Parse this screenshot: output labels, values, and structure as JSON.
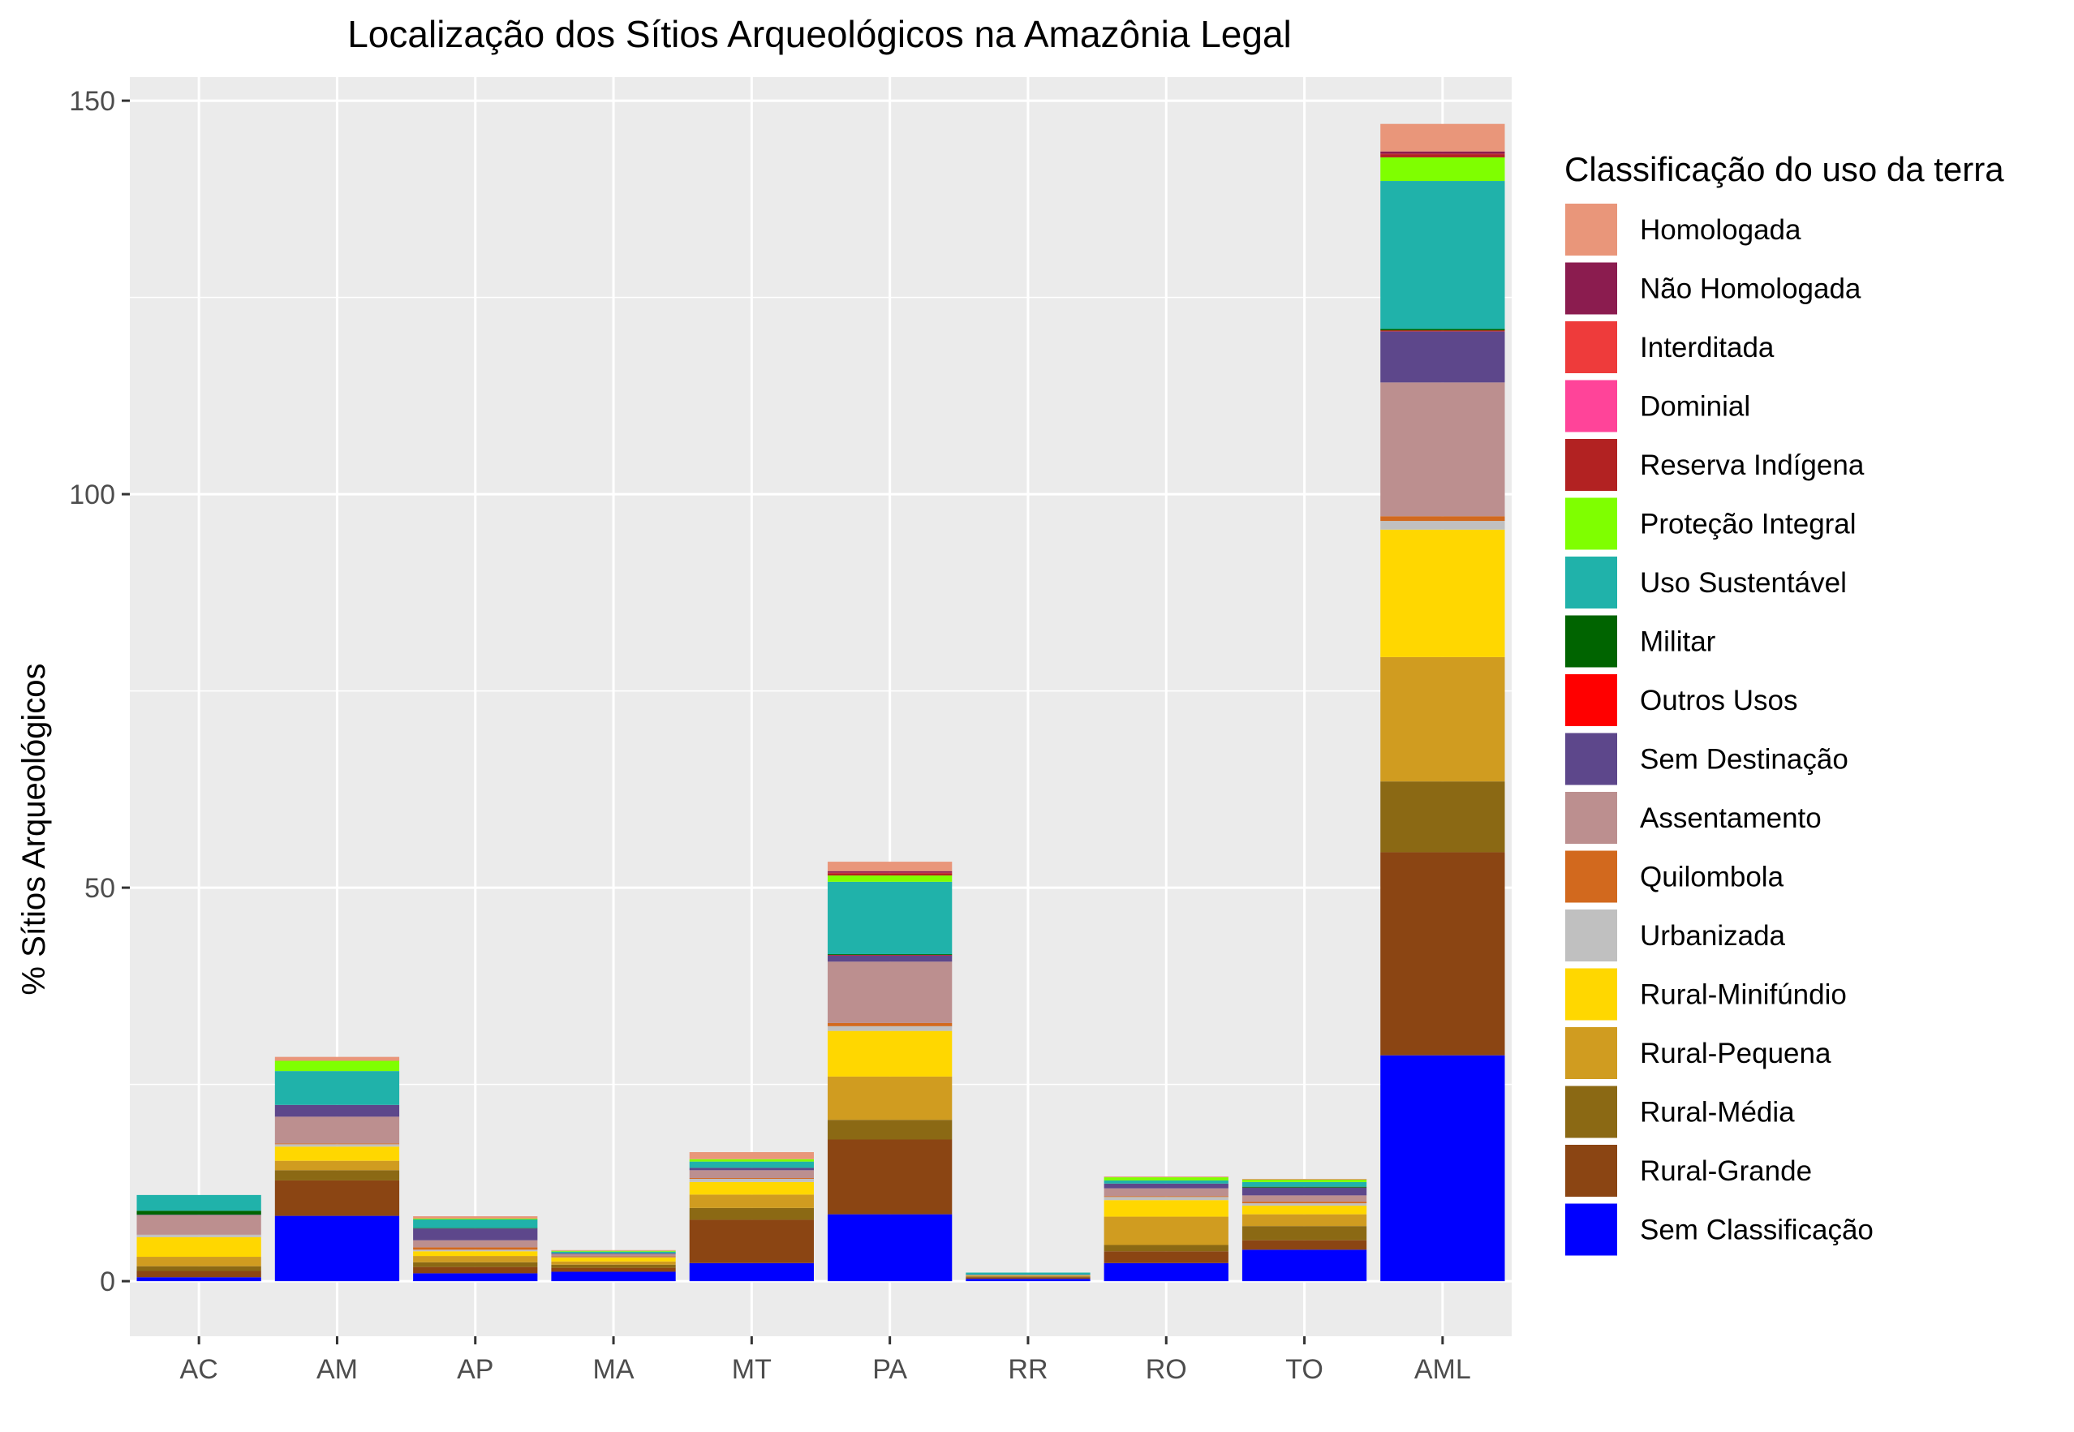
{
  "chart_data": {
    "type": "bar",
    "stacked": true,
    "title": "Localização dos Sítios Arqueológicos na Amazônia Legal",
    "xlabel": "",
    "ylabel": "% Sítios Arqueológicos",
    "ylim": [
      -7,
      153
    ],
    "yticks": [
      0,
      50,
      100,
      150
    ],
    "grid": true,
    "legend_position": "right",
    "legend_title": "Classificação do uso da terra",
    "categories": [
      "AC",
      "AM",
      "AP",
      "MA",
      "MT",
      "PA",
      "RR",
      "RO",
      "TO",
      "AML"
    ],
    "series": [
      {
        "name": "Sem Classificação",
        "color": "#0000FF",
        "values": [
          0.5,
          8.3,
          1.0,
          1.2,
          2.3,
          8.5,
          0.3,
          2.3,
          4.0,
          28.7
        ]
      },
      {
        "name": "Rural-Grande",
        "color": "#8B4513",
        "values": [
          0.8,
          4.5,
          0.8,
          0.5,
          5.5,
          9.5,
          0.2,
          1.5,
          1.2,
          25.8
        ]
      },
      {
        "name": "Rural-Média",
        "color": "#8B6914",
        "values": [
          0.6,
          1.3,
          0.6,
          0.4,
          1.5,
          2.5,
          0.1,
          0.8,
          1.8,
          9.0
        ]
      },
      {
        "name": "Rural-Pequena",
        "color": "#D09C20",
        "values": [
          1.2,
          1.2,
          0.8,
          0.4,
          1.7,
          5.5,
          0.1,
          3.6,
          1.5,
          15.8
        ]
      },
      {
        "name": "Rural-Minifúndio",
        "color": "#FFD700",
        "values": [
          2.5,
          1.8,
          0.6,
          0.5,
          1.6,
          5.8,
          0.05,
          2.1,
          1.1,
          16.2
        ]
      },
      {
        "name": "Urbanizada",
        "color": "#C0C0C0",
        "values": [
          0.3,
          0.3,
          0.2,
          0.05,
          0.4,
          0.6,
          0.02,
          0.4,
          0.3,
          1.1
        ]
      },
      {
        "name": "Quilombola",
        "color": "#D2691E",
        "values": [
          0.0,
          0.1,
          0.3,
          0.1,
          0.1,
          0.4,
          0.0,
          0.1,
          0.2,
          0.6
        ]
      },
      {
        "name": "Assentamento",
        "color": "#BC8F8F",
        "values": [
          2.5,
          3.4,
          0.9,
          0.3,
          1.0,
          7.8,
          0.05,
          1.0,
          0.8,
          17.0
        ]
      },
      {
        "name": "Sem Destinação",
        "color": "#5D478B",
        "values": [
          0.05,
          1.5,
          1.5,
          0.1,
          0.3,
          0.8,
          0.02,
          0.6,
          1.0,
          6.5
        ]
      },
      {
        "name": "Outros Usos",
        "color": "#FF0000",
        "values": [
          0.0,
          0.0,
          0.0,
          0.0,
          0.0,
          0.05,
          0.0,
          0.0,
          0.0,
          0.1
        ]
      },
      {
        "name": "Militar",
        "color": "#006400",
        "values": [
          0.5,
          0.0,
          0.05,
          0.0,
          0.0,
          0.1,
          0.0,
          0.0,
          0.1,
          0.2
        ]
      },
      {
        "name": "Uso Sustentável",
        "color": "#20B2AA",
        "values": [
          2.0,
          4.3,
          1.1,
          0.2,
          0.8,
          9.2,
          0.25,
          0.4,
          0.6,
          18.8
        ]
      },
      {
        "name": "Proteção Integral",
        "color": "#7FFF00",
        "values": [
          0.0,
          1.3,
          0.1,
          0.1,
          0.3,
          0.8,
          0.0,
          0.4,
          0.3,
          3.0
        ]
      },
      {
        "name": "Reserva Indígena",
        "color": "#B22222",
        "values": [
          0.0,
          0.0,
          0.0,
          0.0,
          0.0,
          0.3,
          0.0,
          0.0,
          0.0,
          0.4
        ]
      },
      {
        "name": "Dominial",
        "color": "#FF4499",
        "values": [
          0.0,
          0.0,
          0.0,
          0.0,
          0.0,
          0.0,
          0.0,
          0.0,
          0.0,
          0.0
        ]
      },
      {
        "name": "Interditada",
        "color": "#EE3B3B",
        "values": [
          0.0,
          0.0,
          0.0,
          0.0,
          0.0,
          0.05,
          0.0,
          0.0,
          0.0,
          0.05
        ]
      },
      {
        "name": "Não Homologada",
        "color": "#8B1C4F",
        "values": [
          0.0,
          0.0,
          0.0,
          0.0,
          0.0,
          0.2,
          0.0,
          0.0,
          0.0,
          0.3
        ]
      },
      {
        "name": "Homologada",
        "color": "#E9967A",
        "values": [
          0.0,
          0.5,
          0.3,
          0.1,
          0.9,
          1.2,
          0.0,
          0.1,
          0.1,
          3.5
        ]
      }
    ]
  }
}
